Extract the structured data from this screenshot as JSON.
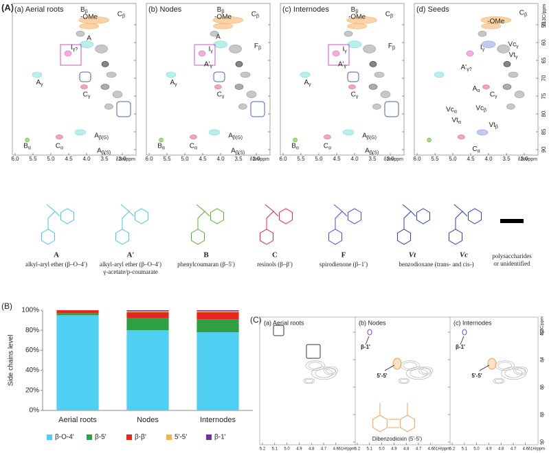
{
  "panel_a": {
    "label": "(A)",
    "x_title": "δ1H/ppm",
    "y_title": "δ13C/ppm",
    "xticks": [
      {
        "value": 6,
        "label": "6.0"
      },
      5.5,
      {
        "value": 5,
        "label": "5.0"
      },
      4.5,
      {
        "value": 4,
        "label": "4.0"
      },
      3.5,
      {
        "value": 3,
        "label": "3.0"
      }
    ],
    "yticks": [
      55,
      60,
      65,
      70,
      75,
      80,
      85,
      90
    ],
    "spectra": [
      {
        "title": "(a) Aerial roots",
        "annotations": [
          "-OMe",
          "Bβ",
          "Cβ",
          "A",
          "Iγ?",
          "Aγ",
          "Cγ",
          "Bα",
          "Cα",
          "Aβ(G)",
          "Aβ(S)"
        ]
      },
      {
        "title": "(b) Nodes",
        "annotations": [
          "-OMe",
          "Bβ",
          "Cβ",
          "A",
          "Fβ",
          "Iγ",
          "A'γ",
          "Aγ",
          "Cγ",
          "Bα",
          "Cα",
          "Aβ(G)",
          "Aβ(S)"
        ]
      },
      {
        "title": "(c) Internodes",
        "annotations": [
          "-OMe",
          "Bβ",
          "Cβ",
          "Fβ",
          "Iγ",
          "A'γ",
          "Aγ",
          "Cγ",
          "Bα",
          "Cα",
          "Aβ(G)",
          "Aβ(S)"
        ]
      },
      {
        "title": "(d) Seeds",
        "annotations": [
          "-OMe",
          "Cβ",
          "Iγ",
          "Vcγ",
          "Vtγ",
          "A'γ?",
          "Aα",
          "Cγ",
          "Vcα",
          "Vcβ",
          "Vtα",
          "Vtβ",
          "Cα"
        ]
      }
    ]
  },
  "structures": [
    {
      "label": "A",
      "caption": [
        "alkyl-aryl ether (β–O–4′)"
      ]
    },
    {
      "label": "A′",
      "caption": [
        "alkyl-aryl ether (β–O–4′)",
        "γ-acetate/p-coumarate"
      ]
    },
    {
      "label": "B",
      "caption": [
        "phenylcoumaran (β–5′)"
      ]
    },
    {
      "label": "C",
      "caption": [
        "resinols (β–β′)"
      ]
    },
    {
      "label": "F",
      "caption": [
        "spirodienone (β–1′)"
      ]
    },
    {
      "labels": [
        "Vt",
        "Vc"
      ],
      "caption": [
        "benzodioxane (trans- and cis-)"
      ]
    },
    {
      "caption": [
        "polysaccharides",
        "or unidentified"
      ]
    }
  ],
  "chart_data": {
    "type": "bar",
    "stacked": true,
    "label": "(B)",
    "y_label": "Side chains level",
    "categories": [
      "Aerial roots",
      "Nodes",
      "Internodes"
    ],
    "series": [
      {
        "name": "β-O-4'",
        "color": "#4fd0f2",
        "values": [
          95,
          80,
          78
        ]
      },
      {
        "name": "β-5'",
        "color": "#2ea043",
        "values": [
          2,
          12,
          13
        ]
      },
      {
        "name": "β-β'",
        "color": "#e8261f",
        "values": [
          3,
          6,
          7
        ]
      },
      {
        "name": "5'-5'",
        "color": "#f6b24a",
        "values": [
          0,
          1,
          1
        ]
      },
      {
        "name": "β-1'",
        "color": "#7030a0",
        "values": [
          0,
          1,
          1
        ]
      }
    ],
    "ylim": [
      0,
      100
    ],
    "yticks": [
      {
        "value": 0,
        "label": "0%"
      },
      {
        "value": 20,
        "label": "20%"
      },
      {
        "value": 40,
        "label": "40%"
      },
      {
        "value": 60,
        "label": "60%"
      },
      {
        "value": 80,
        "label": "80%"
      },
      {
        "value": 100,
        "label": "100%"
      }
    ],
    "legend": "bottom"
  },
  "panel_c": {
    "label": "(C)",
    "x_title": "δ1H/ppm",
    "y_title": "δ13C/ppm",
    "xticks": [
      5.2,
      5.1,
      {
        "value": 5,
        "label": "5.0"
      },
      4.9,
      4.8,
      4.7,
      4.6
    ],
    "yticks": [
      82,
      84,
      86,
      88,
      90
    ],
    "subpanels": [
      {
        "title": "(a) Aerial roots",
        "annotations": []
      },
      {
        "title": "(b) Nodes",
        "annotations": [
          "β-1'",
          "5'-5'",
          "Dibenzodioxin (5'-5')"
        ]
      },
      {
        "title": "(c) Internodes",
        "annotations": [
          "β-1'",
          "5'-5'"
        ]
      }
    ]
  }
}
